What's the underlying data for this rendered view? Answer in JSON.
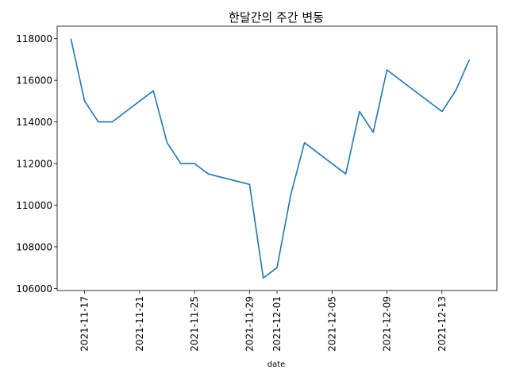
{
  "chart_data": {
    "type": "line",
    "title": "한달간의 주간 변동",
    "xlabel": "date",
    "ylabel": "",
    "x_axis_type": "date",
    "xlim": [
      "2021-11-15",
      "2021-12-17"
    ],
    "ylim": [
      105900,
      118600
    ],
    "x_ticks": [
      "2021-11-17",
      "2021-11-21",
      "2021-11-25",
      "2021-11-29",
      "2021-12-01",
      "2021-12-05",
      "2021-12-09",
      "2021-12-13"
    ],
    "y_ticks": [
      106000,
      108000,
      110000,
      112000,
      114000,
      116000,
      118000
    ],
    "grid": false,
    "legend": "none",
    "line_color": "#1f77b4",
    "series": [
      {
        "x": [
          "2021-11-16",
          "2021-11-17",
          "2021-11-18",
          "2021-11-19",
          "2021-11-22",
          "2021-11-23",
          "2021-11-24",
          "2021-11-25",
          "2021-11-26",
          "2021-11-29",
          "2021-11-30",
          "2021-12-01",
          "2021-12-02",
          "2021-12-03",
          "2021-12-06",
          "2021-12-07",
          "2021-12-08",
          "2021-12-09",
          "2021-12-13",
          "2021-12-14",
          "2021-12-15"
        ],
        "values": [
          118000,
          115000,
          114000,
          114000,
          115500,
          113000,
          112000,
          112000,
          111500,
          111000,
          106500,
          107000,
          110500,
          113000,
          111500,
          114500,
          113500,
          116500,
          114500,
          115500,
          117000
        ]
      }
    ]
  }
}
